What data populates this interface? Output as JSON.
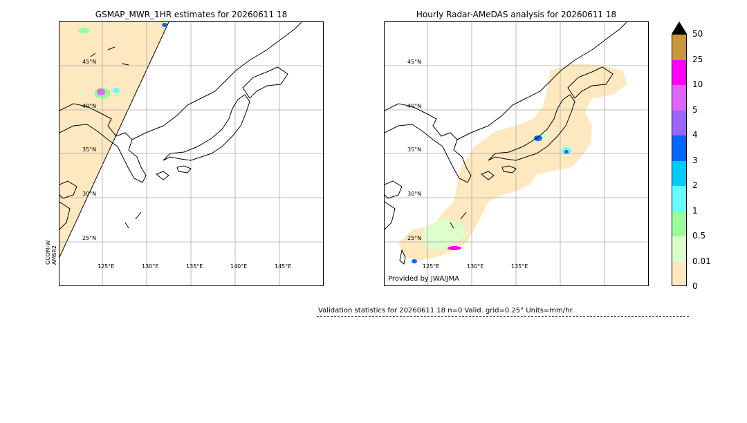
{
  "left_panel": {
    "title": "GSMAP_MWR_1HR estimates for 20260611 18",
    "lat_labels": [
      "45°N",
      "40°N",
      "35°N",
      "30°N",
      "25°N"
    ],
    "lon_labels": [
      "125°E",
      "130°E",
      "135°E",
      "140°E",
      "145°E"
    ],
    "satellite_label": "GCOM-W\nAMSR2"
  },
  "right_panel": {
    "title": "Hourly Radar-AMeDAS analysis for 20260611 18",
    "lat_labels": [
      "45°N",
      "40°N",
      "35°N",
      "30°N",
      "25°N"
    ],
    "lon_labels": [
      "125°E",
      "130°E",
      "135°E"
    ],
    "credit": "Provided by JWA/JMA"
  },
  "colorbar": {
    "ticks": [
      "50",
      "25",
      "10",
      "5",
      "4",
      "3",
      "2",
      "1",
      "0.5",
      "0.01",
      "0"
    ],
    "colors": [
      "#c8963c",
      "#ff00ff",
      "#dd66ff",
      "#9966ff",
      "#0066ff",
      "#00ccff",
      "#66ffff",
      "#99ff99",
      "#ddffcc",
      "#fde8c0"
    ]
  },
  "stats": {
    "text": "Validation statistics for 20260611 18  n=0 Valid. grid=0.25° Units=mm/hr."
  }
}
